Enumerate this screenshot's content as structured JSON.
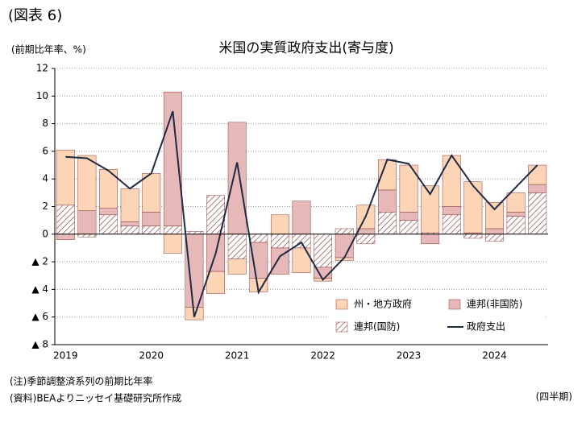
{
  "chart_data": {
    "type": "bar",
    "label": "(図表 6)",
    "title": "米国の実質政府支出(寄与度)",
    "ylabel": "(前期比年率、%)",
    "xlabel": "(四半期)",
    "notes": [
      "(注)季節調整済系列の前期比年率",
      "(資料)BEAよりニッセイ基礎研究所作成"
    ],
    "categories": [
      "2019",
      null,
      null,
      null,
      "2020",
      null,
      null,
      null,
      "2021",
      null,
      null,
      null,
      "2022",
      null,
      null,
      null,
      "2023",
      null,
      null,
      null,
      "2024",
      null,
      null
    ],
    "series": [
      {
        "name": "州・地方政府",
        "type": "bar",
        "color": "#fbd5b5",
        "values": [
          4.0,
          4.0,
          2.8,
          2.4,
          2.8,
          -1.4,
          -0.9,
          -1.6,
          -1.1,
          -1.0,
          1.4,
          -1.8,
          -0.2,
          -0.2,
          1.7,
          2.2,
          3.4,
          3.4,
          3.7,
          3.7,
          1.9,
          1.4,
          1.4
        ]
      },
      {
        "name": "連邦(非国防)",
        "type": "bar",
        "color": "#e6b9b8",
        "values": [
          -0.4,
          1.7,
          0.5,
          0.3,
          1.0,
          9.7,
          -5.3,
          -2.7,
          8.1,
          -2.6,
          -1.9,
          2.4,
          -0.8,
          -1.7,
          0.4,
          1.6,
          0.6,
          -0.7,
          0.6,
          0.1,
          0.4,
          0.3,
          0.6
        ]
      },
      {
        "name": "連邦(国防)",
        "type": "bar",
        "pattern": "hatch",
        "color": "#c0504d",
        "values": [
          2.1,
          -0.2,
          1.4,
          0.6,
          0.6,
          0.6,
          0.2,
          2.8,
          -1.8,
          -0.6,
          -1.0,
          -1.0,
          -2.4,
          0.4,
          -0.7,
          1.6,
          1.0,
          0.1,
          1.4,
          -0.3,
          -0.5,
          1.3,
          3.0
        ]
      },
      {
        "name": "政府支出",
        "type": "line",
        "color": "#1f2a44",
        "values": [
          5.6,
          5.5,
          4.6,
          3.3,
          4.4,
          8.9,
          -6.0,
          -1.4,
          5.2,
          -4.2,
          -1.6,
          -0.6,
          -3.3,
          -1.7,
          1.3,
          5.4,
          5.1,
          2.9,
          5.7,
          3.5,
          1.8,
          3.4,
          5.0
        ]
      }
    ],
    "ylim": [
      -8,
      12
    ],
    "yticks": [
      {
        "value": -8,
        "label": "▲ 8"
      },
      {
        "value": -6,
        "label": "▲ 6"
      },
      {
        "value": -4,
        "label": "▲ 4"
      },
      {
        "value": -2,
        "label": "▲ 2"
      },
      0,
      2,
      4,
      6,
      8,
      10,
      12
    ],
    "grid": true,
    "legend": "lower right"
  }
}
